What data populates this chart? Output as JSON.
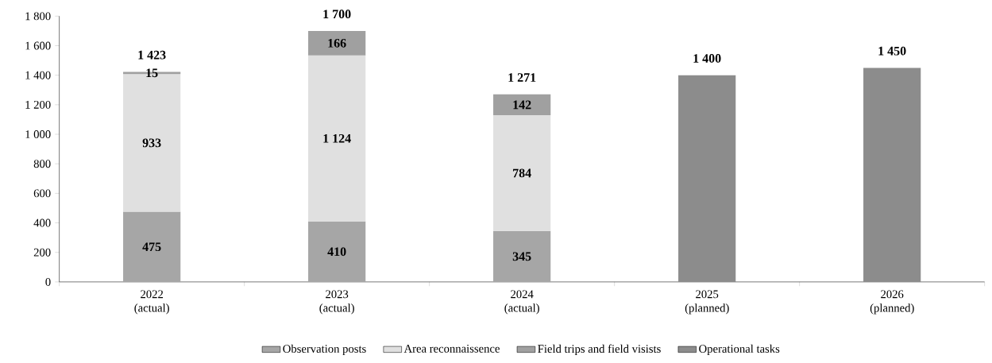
{
  "chart_data": {
    "type": "bar",
    "stacked": true,
    "categories": [
      "2022 (actual)",
      "2023 (actual)",
      "2024 (actual)",
      "2025 (planned)",
      "2026 (planned)"
    ],
    "series": [
      {
        "name": "Observation posts",
        "color": "#a6a6a6",
        "values": [
          475,
          410,
          345,
          null,
          null
        ],
        "value_labels": [
          "475",
          "410",
          "345",
          null,
          null
        ]
      },
      {
        "name": "Area reconnaissence",
        "color": "#e0e0e0",
        "values": [
          933,
          1124,
          784,
          null,
          null
        ],
        "value_labels": [
          "933",
          "1 124",
          "784",
          null,
          null
        ]
      },
      {
        "name": "Field trips and field visists",
        "color": "#a0a0a0",
        "values": [
          15,
          166,
          142,
          null,
          null
        ],
        "value_labels": [
          "15",
          "166",
          "142",
          null,
          null
        ]
      },
      {
        "name": "Operational tasks",
        "color": "#8c8c8c",
        "values": [
          null,
          null,
          null,
          1400,
          1450
        ]
      }
    ],
    "totals": [
      "1 423",
      "1 700",
      "1 271",
      "1 400",
      "1 450"
    ],
    "ylim": [
      0,
      1800
    ],
    "yticks": [
      0,
      200,
      400,
      600,
      800,
      {
        "value": 1000,
        "label": "1 000"
      },
      {
        "value": 1200,
        "label": "1 200"
      },
      {
        "value": 1400,
        "label": "1 400"
      },
      {
        "value": 1600,
        "label": "1 600"
      },
      {
        "value": 1800,
        "label": "1 800"
      }
    ],
    "grid": false,
    "legend": "bottom"
  }
}
